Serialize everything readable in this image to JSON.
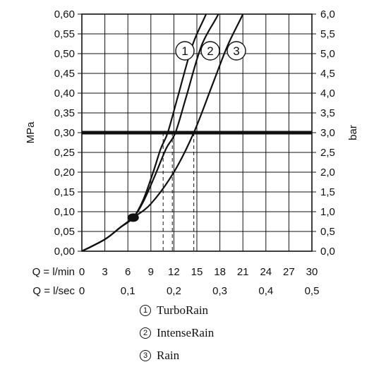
{
  "chart_data": {
    "type": "line",
    "ylabel_left": "MPa",
    "ylabel_right": "bar",
    "y_left_ticks": [
      "0,00",
      "0,05",
      "0,10",
      "0,15",
      "0,20",
      "0,25",
      "0,30",
      "0,35",
      "0,40",
      "0,45",
      "0,50",
      "0,55",
      "0,60"
    ],
    "y_right_ticks": [
      "0,0",
      "0,5",
      "1,0",
      "1,5",
      "2,0",
      "2,5",
      "3,0",
      "3,5",
      "4,0",
      "4,5",
      "5,0",
      "5,5",
      "6,0"
    ],
    "ylim": [
      0,
      0.6
    ],
    "xlim": [
      0,
      30
    ],
    "x_row1_label": "Q = l/min",
    "x_row1_ticks": [
      "0",
      "3",
      "6",
      "9",
      "12",
      "15",
      "18",
      "21",
      "24",
      "27",
      "30"
    ],
    "x_row2_label": "Q = l/sec",
    "x_row2_ticks": [
      {
        "label": "0",
        "value": 0
      },
      {
        "label": "0,1",
        "value": 6
      },
      {
        "label": "0,2",
        "value": 12
      },
      {
        "label": "0,3",
        "value": 18
      },
      {
        "label": "0,4",
        "value": 24
      },
      {
        "label": "0,5",
        "value": 30
      }
    ],
    "reference_pressure": 0.3,
    "min_point": {
      "x": 6.7,
      "y": 0.085
    },
    "series": [
      {
        "name": "TurboRain",
        "marker": "1",
        "points": [
          [
            0,
            0
          ],
          [
            3,
            0.03
          ],
          [
            5,
            0.06
          ],
          [
            6.7,
            0.085
          ],
          [
            8,
            0.13
          ],
          [
            9.5,
            0.2
          ],
          [
            10.6,
            0.26
          ],
          [
            11.8,
            0.3
          ],
          [
            13,
            0.39
          ],
          [
            15,
            0.52
          ],
          [
            17,
            0.6
          ],
          [
            18,
            0.65
          ]
        ]
      },
      {
        "name": "IntenseRain",
        "marker": "2",
        "points": [
          [
            0,
            0
          ],
          [
            3,
            0.03
          ],
          [
            5,
            0.06
          ],
          [
            6.7,
            0.085
          ],
          [
            8,
            0.13
          ],
          [
            9.5,
            0.2
          ],
          [
            10.6,
            0.26
          ],
          [
            11.8,
            0.3
          ],
          [
            13,
            0.39
          ],
          [
            15,
            0.52
          ],
          [
            17,
            0.6
          ],
          [
            18,
            0.65
          ]
        ]
      },
      {
        "name": "Rain",
        "marker": "3",
        "points": [
          [
            0,
            0
          ],
          [
            3,
            0.03
          ],
          [
            5,
            0.06
          ],
          [
            6.7,
            0.085
          ],
          [
            9,
            0.12
          ],
          [
            12,
            0.2
          ],
          [
            14.6,
            0.3
          ],
          [
            17,
            0.42
          ],
          [
            19,
            0.52
          ],
          [
            21,
            0.6
          ],
          [
            22,
            0.65
          ]
        ]
      }
    ]
  },
  "legend": [
    {
      "num": "1",
      "label": "TurboRain"
    },
    {
      "num": "2",
      "label": "IntenseRain"
    },
    {
      "num": "3",
      "label": "Rain"
    }
  ]
}
